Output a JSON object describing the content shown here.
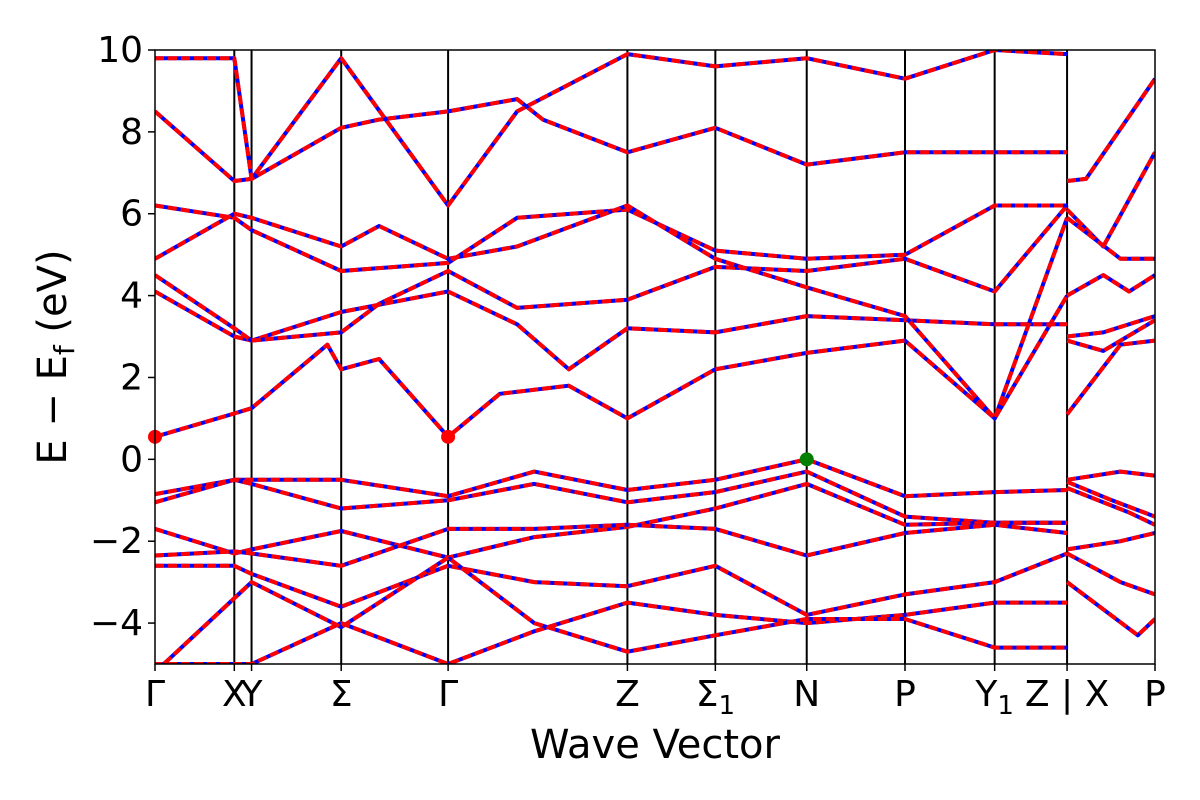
{
  "chart_data": {
    "type": "line",
    "title": "",
    "xlabel": "Wave Vector",
    "ylabel": "E − E",
    "ylabel_sub": "f",
    "ylabel_unit": " (eV)",
    "ylim": [
      -5,
      10
    ],
    "xlim": [
      0,
      11.6
    ],
    "yticks": [
      -4,
      -2,
      0,
      2,
      4,
      6,
      8,
      10
    ],
    "ytick_labels": [
      "−4",
      "−2",
      "0",
      "2",
      "4",
      "6",
      "8",
      "10"
    ],
    "kpath": [
      {
        "label": "Γ",
        "x": 0.0,
        "line": false
      },
      {
        "label": "X",
        "x": 0.92,
        "line": true
      },
      {
        "label": "Y",
        "x": 1.12,
        "line": true
      },
      {
        "label": "Σ",
        "x": 2.16,
        "line": true
      },
      {
        "label": "Γ",
        "x": 3.4,
        "line": true
      },
      {
        "label": "Z",
        "x": 5.48,
        "line": true
      },
      {
        "label": "Σ",
        "sub": "1",
        "x": 6.5,
        "line": true
      },
      {
        "label": "N",
        "x": 7.56,
        "line": true
      },
      {
        "label": "P",
        "x": 8.7,
        "line": true
      },
      {
        "label": "Y",
        "sub": "1",
        "x": 9.74,
        "line": true
      },
      {
        "label": "Z | X",
        "x": 10.58,
        "line": true
      },
      {
        "label": "P",
        "x": 11.6,
        "line": false
      }
    ],
    "series_colors": {
      "dft": "#ff0000",
      "wannier": "#0000ff"
    },
    "special_points": [
      {
        "x": 0.0,
        "y": 0.55,
        "color": "#ff0000"
      },
      {
        "x": 3.4,
        "y": 0.55,
        "color": "#ff0000"
      },
      {
        "x": 7.56,
        "y": 0.0,
        "color": "#008000"
      }
    ],
    "bands": [
      [
        [
          0,
          0.55
        ],
        [
          0.92,
          1.12
        ],
        [
          1.12,
          1.25
        ],
        [
          2.0,
          2.8
        ],
        [
          2.16,
          2.2
        ],
        [
          2.6,
          2.45
        ],
        [
          3.4,
          0.55
        ],
        [
          4.0,
          1.6
        ],
        [
          4.8,
          1.8
        ],
        [
          5.48,
          1.0
        ],
        [
          6.5,
          2.2
        ],
        [
          7.56,
          2.6
        ],
        [
          8.7,
          2.9
        ],
        [
          9.74,
          1.0
        ],
        [
          10.58,
          4.0
        ]
      ],
      [
        [
          0,
          4.1
        ],
        [
          0.92,
          3.0
        ],
        [
          1.12,
          2.9
        ],
        [
          2.16,
          3.6
        ],
        [
          3.4,
          4.1
        ],
        [
          4.2,
          3.3
        ],
        [
          4.8,
          2.2
        ],
        [
          5.48,
          3.2
        ],
        [
          6.5,
          3.1
        ],
        [
          7.56,
          3.5
        ],
        [
          8.7,
          3.4
        ],
        [
          9.74,
          3.3
        ],
        [
          10.58,
          3.3
        ]
      ],
      [
        [
          0,
          4.5
        ],
        [
          0.92,
          3.2
        ],
        [
          1.12,
          2.9
        ],
        [
          2.16,
          3.1
        ],
        [
          2.6,
          3.8
        ],
        [
          3.4,
          4.6
        ],
        [
          4.2,
          3.7
        ],
        [
          5.48,
          3.9
        ],
        [
          6.5,
          4.7
        ],
        [
          7.56,
          4.6
        ],
        [
          8.7,
          4.9
        ],
        [
          9.74,
          4.1
        ],
        [
          10.58,
          6.2
        ]
      ],
      [
        [
          0,
          6.2
        ],
        [
          0.92,
          5.9
        ],
        [
          1.12,
          5.6
        ],
        [
          2.16,
          4.6
        ],
        [
          3.4,
          4.8
        ],
        [
          4.2,
          5.9
        ],
        [
          5.48,
          6.1
        ],
        [
          6.5,
          5.1
        ],
        [
          7.56,
          4.9
        ],
        [
          8.7,
          5.0
        ],
        [
          9.74,
          6.2
        ],
        [
          10.58,
          6.2
        ]
      ],
      [
        [
          0,
          4.9
        ],
        [
          0.92,
          6.0
        ],
        [
          1.12,
          5.9
        ],
        [
          2.16,
          5.2
        ],
        [
          2.6,
          5.7
        ],
        [
          3.4,
          4.9
        ],
        [
          4.2,
          5.2
        ],
        [
          5.48,
          6.2
        ],
        [
          6.5,
          4.9
        ],
        [
          7.56,
          4.2
        ],
        [
          8.7,
          3.5
        ],
        [
          9.74,
          1.0
        ],
        [
          10.58,
          5.9
        ]
      ],
      [
        [
          0,
          8.5
        ],
        [
          0.92,
          6.8
        ],
        [
          1.12,
          6.85
        ],
        [
          2.16,
          8.1
        ],
        [
          2.6,
          8.3
        ],
        [
          3.4,
          8.5
        ],
        [
          4.2,
          8.8
        ],
        [
          4.5,
          8.3
        ],
        [
          5.48,
          7.5
        ],
        [
          6.5,
          8.1
        ],
        [
          7.56,
          7.2
        ],
        [
          8.7,
          7.5
        ],
        [
          9.74,
          7.5
        ],
        [
          10.58,
          7.5
        ]
      ],
      [
        [
          0,
          9.8
        ],
        [
          0.92,
          9.8
        ],
        [
          1.12,
          6.85
        ],
        [
          2.16,
          9.8
        ],
        [
          3.4,
          6.2
        ],
        [
          4.2,
          8.5
        ],
        [
          5.48,
          9.9
        ],
        [
          6.5,
          9.6
        ],
        [
          7.56,
          9.8
        ],
        [
          8.7,
          9.3
        ],
        [
          9.74,
          10.0
        ],
        [
          10.58,
          9.9
        ]
      ],
      [
        [
          0,
          -0.85
        ],
        [
          0.92,
          -0.5
        ],
        [
          1.12,
          -0.5
        ],
        [
          2.16,
          -0.5
        ],
        [
          3.4,
          -0.9
        ],
        [
          4.4,
          -0.3
        ],
        [
          5.48,
          -0.75
        ],
        [
          6.5,
          -0.5
        ],
        [
          7.56,
          0.0
        ],
        [
          8.7,
          -0.9
        ],
        [
          9.74,
          -0.8
        ],
        [
          10.58,
          -0.75
        ]
      ],
      [
        [
          0,
          -1.05
        ],
        [
          0.92,
          -0.5
        ],
        [
          1.12,
          -0.6
        ],
        [
          2.16,
          -1.2
        ],
        [
          3.4,
          -1.0
        ],
        [
          4.4,
          -0.6
        ],
        [
          5.48,
          -1.05
        ],
        [
          6.5,
          -0.8
        ],
        [
          7.56,
          -0.3
        ],
        [
          8.7,
          -1.4
        ],
        [
          9.74,
          -1.55
        ],
        [
          10.58,
          -1.55
        ]
      ],
      [
        [
          0,
          -1.7
        ],
        [
          0.92,
          -2.3
        ],
        [
          1.12,
          -2.2
        ],
        [
          2.16,
          -1.75
        ],
        [
          3.4,
          -2.4
        ],
        [
          4.4,
          -1.9
        ],
        [
          5.48,
          -1.65
        ],
        [
          6.5,
          -1.2
        ],
        [
          7.56,
          -0.6
        ],
        [
          8.7,
          -1.6
        ],
        [
          9.74,
          -1.55
        ],
        [
          10.58,
          -1.55
        ]
      ],
      [
        [
          0,
          -2.35
        ],
        [
          0.92,
          -2.25
        ],
        [
          1.12,
          -2.3
        ],
        [
          2.16,
          -2.6
        ],
        [
          3.4,
          -1.7
        ],
        [
          4.4,
          -1.7
        ],
        [
          5.48,
          -1.6
        ],
        [
          6.5,
          -1.7
        ],
        [
          7.56,
          -2.35
        ],
        [
          8.7,
          -1.8
        ],
        [
          9.74,
          -1.6
        ],
        [
          10.58,
          -1.8
        ]
      ],
      [
        [
          0,
          -2.6
        ],
        [
          0.92,
          -2.6
        ],
        [
          1.12,
          -2.8
        ],
        [
          2.16,
          -3.6
        ],
        [
          3.4,
          -2.6
        ],
        [
          4.4,
          -3.0
        ],
        [
          5.48,
          -3.1
        ],
        [
          6.5,
          -2.6
        ],
        [
          7.56,
          -3.8
        ],
        [
          8.7,
          -3.3
        ],
        [
          9.74,
          -3.0
        ],
        [
          10.58,
          -2.3
        ]
      ],
      [
        [
          0,
          -5.0
        ],
        [
          1.12,
          -5.0
        ],
        [
          2.16,
          -4.0
        ],
        [
          3.4,
          -5.0
        ],
        [
          4.4,
          -4.2
        ],
        [
          5.48,
          -3.5
        ],
        [
          6.5,
          -3.8
        ],
        [
          7.56,
          -4.0
        ],
        [
          8.7,
          -3.8
        ],
        [
          9.74,
          -3.5
        ],
        [
          10.58,
          -3.5
        ]
      ],
      [
        [
          0,
          -5.2
        ],
        [
          1.12,
          -3.0
        ],
        [
          2.16,
          -4.1
        ],
        [
          3.4,
          -2.4
        ],
        [
          4.4,
          -4.0
        ],
        [
          5.48,
          -4.7
        ],
        [
          6.5,
          -4.3
        ],
        [
          7.56,
          -3.9
        ],
        [
          8.7,
          -3.9
        ],
        [
          9.74,
          -4.6
        ],
        [
          10.58,
          -4.6
        ]
      ],
      [
        [
          10.58,
          6.8
        ],
        [
          10.8,
          6.85
        ],
        [
          11.6,
          9.3
        ]
      ],
      [
        [
          10.58,
          6.1
        ],
        [
          11.0,
          5.2
        ],
        [
          11.6,
          7.5
        ]
      ],
      [
        [
          10.58,
          5.9
        ],
        [
          11.2,
          4.9
        ],
        [
          11.6,
          4.9
        ]
      ],
      [
        [
          10.58,
          4.0
        ],
        [
          11.0,
          4.5
        ],
        [
          11.3,
          4.1
        ],
        [
          11.6,
          4.5
        ]
      ],
      [
        [
          10.58,
          3.0
        ],
        [
          11.0,
          3.1
        ],
        [
          11.6,
          3.5
        ]
      ],
      [
        [
          10.58,
          2.9
        ],
        [
          11.0,
          2.65
        ],
        [
          11.6,
          3.4
        ]
      ],
      [
        [
          10.58,
          1.1
        ],
        [
          11.2,
          2.8
        ],
        [
          11.6,
          2.9
        ]
      ],
      [
        [
          10.58,
          -0.5
        ],
        [
          11.2,
          -0.3
        ],
        [
          11.6,
          -0.4
        ]
      ],
      [
        [
          10.58,
          -0.55
        ],
        [
          11.1,
          -1.0
        ],
        [
          11.6,
          -1.4
        ]
      ],
      [
        [
          10.58,
          -0.7
        ],
        [
          11.3,
          -1.3
        ],
        [
          11.6,
          -1.6
        ]
      ],
      [
        [
          10.58,
          -2.2
        ],
        [
          11.2,
          -2.0
        ],
        [
          11.6,
          -1.8
        ]
      ],
      [
        [
          10.58,
          -2.3
        ],
        [
          11.2,
          -3.0
        ],
        [
          11.6,
          -3.3
        ]
      ],
      [
        [
          10.58,
          -3.0
        ],
        [
          11.4,
          -4.3
        ],
        [
          11.6,
          -3.9
        ]
      ]
    ]
  }
}
